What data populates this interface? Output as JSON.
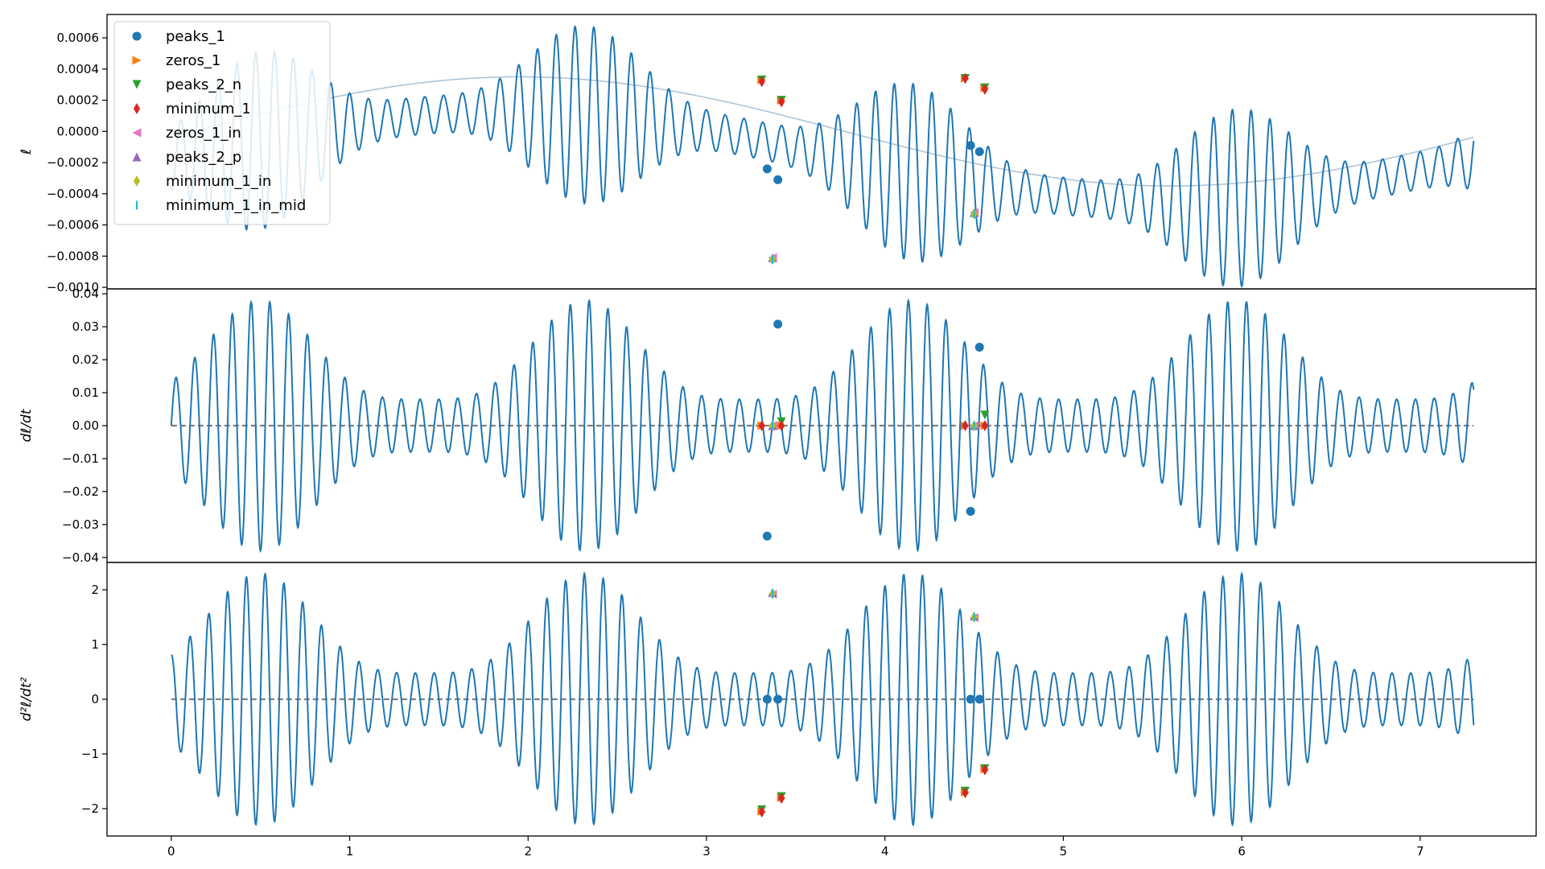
{
  "chart_data": [
    {
      "type": "line",
      "panel": "top",
      "ylabel": "ℓ",
      "xlim": [
        -0.36,
        7.65
      ],
      "ylim": [
        -0.00101,
        0.00075
      ],
      "yticks": [
        -0.001,
        -0.0008,
        -0.0006,
        -0.0004,
        -0.0002,
        0.0,
        0.0002,
        0.0004,
        0.0006
      ],
      "ytick_labels": [
        "−0.0010",
        "−0.0008",
        "−0.0006",
        "−0.0004",
        "−0.0002",
        "0.0000",
        "0.0002",
        "0.0004",
        "0.0006"
      ],
      "signal": {
        "t_end": 7.3,
        "offset": -0.00016,
        "trend_amp": 0.00052,
        "trend_period": 7.3,
        "osc_freq": 9.5,
        "osc_phase": 3.14159,
        "osc_base": 0.00012,
        "osc_mod": 0.00045,
        "mod_period": 3.65,
        "mod_peak_t": 0.5,
        "mod_power": 4
      },
      "background_curve": {
        "amp": 0.00035,
        "period": 7.3,
        "peak_t": 1.95
      },
      "legend": {
        "position": "upper left",
        "entries": [
          {
            "label": "peaks_1",
            "marker": "circle",
            "color": "#1f77b4"
          },
          {
            "label": "zeros_1",
            "marker": "triangle-right",
            "color": "#ff7f0e"
          },
          {
            "label": "peaks_2_n",
            "marker": "triangle-down",
            "color": "#2ca02c"
          },
          {
            "label": "minimum_1",
            "marker": "diamond",
            "color": "#d62728"
          },
          {
            "label": "zeros_1_in",
            "marker": "triangle-left",
            "color": "#e377c2"
          },
          {
            "label": "peaks_2_p",
            "marker": "triangle-up",
            "color": "#9467bd"
          },
          {
            "label": "minimum_1_in",
            "marker": "diamond",
            "color": "#bcbd22"
          },
          {
            "label": "minimum_1_in_mid",
            "marker": "vline",
            "color": "#17becf"
          }
        ]
      },
      "markers": [
        {
          "series": "peaks_1",
          "points": [
            [
              3.34,
              -0.00024
            ],
            [
              3.4,
              -0.00031
            ],
            [
              4.48,
              -9e-05
            ],
            [
              4.53,
              -0.00013
            ]
          ]
        },
        {
          "series": "zeros_1",
          "points": [
            [
              3.31,
              0.00033
            ],
            [
              3.42,
              0.0002
            ],
            [
              4.45,
              0.00034
            ],
            [
              4.56,
              0.00028
            ]
          ]
        },
        {
          "series": "peaks_2_n",
          "points": [
            [
              3.31,
              0.00033
            ],
            [
              3.42,
              0.0002
            ],
            [
              4.45,
              0.00034
            ],
            [
              4.56,
              0.00028
            ]
          ]
        },
        {
          "series": "minimum_1",
          "points": [
            [
              3.31,
              0.00032
            ],
            [
              3.42,
              0.00019
            ],
            [
              4.45,
              0.00034
            ],
            [
              4.56,
              0.00027
            ]
          ]
        },
        {
          "series": "zeros_1_in",
          "points": [
            [
              3.37,
              -0.00081
            ],
            [
              4.5,
              -0.00052
            ]
          ]
        },
        {
          "series": "peaks_2_p",
          "points": [
            [
              3.37,
              -0.00081
            ],
            [
              4.5,
              -0.00052
            ]
          ]
        },
        {
          "series": "minimum_1_in",
          "points": [
            [
              3.37,
              -0.00082
            ],
            [
              4.5,
              -0.00053
            ]
          ]
        },
        {
          "series": "minimum_1_in_mid",
          "points": [
            [
              3.37,
              -0.00082
            ],
            [
              4.5,
              -0.00053
            ]
          ]
        }
      ]
    },
    {
      "type": "line",
      "panel": "middle",
      "ylabel": "dℓ/dt",
      "xlim": [
        -0.36,
        7.65
      ],
      "ylim": [
        -0.0415,
        0.0415
      ],
      "yticks": [
        -0.04,
        -0.03,
        -0.02,
        -0.01,
        0.0,
        0.01,
        0.02,
        0.03,
        0.04
      ],
      "ytick_labels": [
        "−0.04",
        "−0.03",
        "−0.02",
        "−0.01",
        "0.00",
        "0.01",
        "0.02",
        "0.03",
        "0.04"
      ],
      "signal": {
        "t_end": 7.3,
        "osc_freq": 9.5,
        "osc_phase": -1.5708,
        "amp_base": 0.008,
        "amp_mod": 0.03,
        "mod_period": 3.65,
        "mod_peak_t": 0.5,
        "mod_power": 4
      },
      "zero_line": {
        "y": 0,
        "color": "#808080",
        "dashed": true
      },
      "markers": [
        {
          "series": "peaks_1",
          "points": [
            [
              3.34,
              -0.0335
            ],
            [
              3.4,
              0.0308
            ],
            [
              4.48,
              -0.026
            ],
            [
              4.53,
              0.0238
            ]
          ]
        },
        {
          "series": "zeros_1",
          "points": [
            [
              3.31,
              0.0
            ],
            [
              3.42,
              0.0
            ],
            [
              4.45,
              0.0
            ],
            [
              4.56,
              0.0
            ]
          ]
        },
        {
          "series": "peaks_2_n",
          "points": [
            [
              3.42,
              0.0012
            ],
            [
              4.56,
              0.0032
            ]
          ]
        },
        {
          "series": "minimum_1",
          "points": [
            [
              3.31,
              0.0
            ],
            [
              3.42,
              0.0
            ],
            [
              4.45,
              0.0
            ],
            [
              4.56,
              0.0
            ]
          ]
        },
        {
          "series": "zeros_1_in",
          "points": [
            [
              3.37,
              0.0
            ],
            [
              4.5,
              0.0
            ]
          ]
        },
        {
          "series": "peaks_2_p",
          "points": [
            [
              3.37,
              0.0
            ],
            [
              4.5,
              0.0
            ]
          ]
        },
        {
          "series": "minimum_1_in",
          "points": [
            [
              3.37,
              0.0
            ],
            [
              4.5,
              0.0
            ]
          ]
        },
        {
          "series": "minimum_1_in_mid",
          "points": [
            [
              3.37,
              0.0
            ],
            [
              4.5,
              0.0
            ]
          ]
        }
      ]
    },
    {
      "type": "line",
      "panel": "bottom",
      "ylabel": "d²ℓ/dt²",
      "xlabel": "",
      "xlim": [
        -0.36,
        7.65
      ],
      "ylim": [
        -2.5,
        2.5
      ],
      "yticks": [
        -2,
        -1,
        0,
        1,
        2
      ],
      "ytick_labels": [
        "−2",
        "−1",
        "0",
        "1",
        "2"
      ],
      "xticks": [
        0,
        1,
        2,
        3,
        4,
        5,
        6,
        7
      ],
      "xtick_labels": [
        "0",
        "1",
        "2",
        "3",
        "4",
        "5",
        "6",
        "7"
      ],
      "signal": {
        "t_end": 7.3,
        "osc_freq": 9.5,
        "osc_phase": 0,
        "amp_base": 0.48,
        "amp_mod": 1.82,
        "mod_period": 3.65,
        "mod_peak_t": 0.5,
        "mod_power": 4
      },
      "zero_line": {
        "y": 0,
        "color": "#808080",
        "dashed": true
      },
      "markers": [
        {
          "series": "peaks_1",
          "points": [
            [
              3.34,
              0.0
            ],
            [
              3.4,
              0.0
            ],
            [
              4.48,
              0.0
            ],
            [
              4.53,
              0.0
            ]
          ]
        },
        {
          "series": "zeros_1",
          "points": [
            [
              3.31,
              -2.05
            ],
            [
              3.42,
              -1.8
            ],
            [
              4.45,
              -1.7
            ],
            [
              4.56,
              -1.28
            ]
          ]
        },
        {
          "series": "peaks_2_n",
          "points": [
            [
              3.31,
              -2.02
            ],
            [
              3.42,
              -1.78
            ],
            [
              4.45,
              -1.68
            ],
            [
              4.56,
              -1.27
            ]
          ]
        },
        {
          "series": "minimum_1",
          "points": [
            [
              3.31,
              -2.06
            ],
            [
              3.42,
              -1.81
            ],
            [
              4.45,
              -1.71
            ],
            [
              4.56,
              -1.29
            ]
          ]
        },
        {
          "series": "zeros_1_in",
          "points": [
            [
              3.37,
              1.92
            ],
            [
              4.5,
              1.49
            ]
          ]
        },
        {
          "series": "peaks_2_p",
          "points": [
            [
              3.37,
              1.95
            ],
            [
              4.5,
              1.52
            ]
          ]
        },
        {
          "series": "minimum_1_in",
          "points": [
            [
              3.37,
              1.93
            ],
            [
              4.5,
              1.5
            ]
          ]
        },
        {
          "series": "minimum_1_in_mid",
          "points": [
            [
              3.37,
              1.93
            ],
            [
              4.5,
              1.5
            ]
          ]
        }
      ]
    }
  ]
}
